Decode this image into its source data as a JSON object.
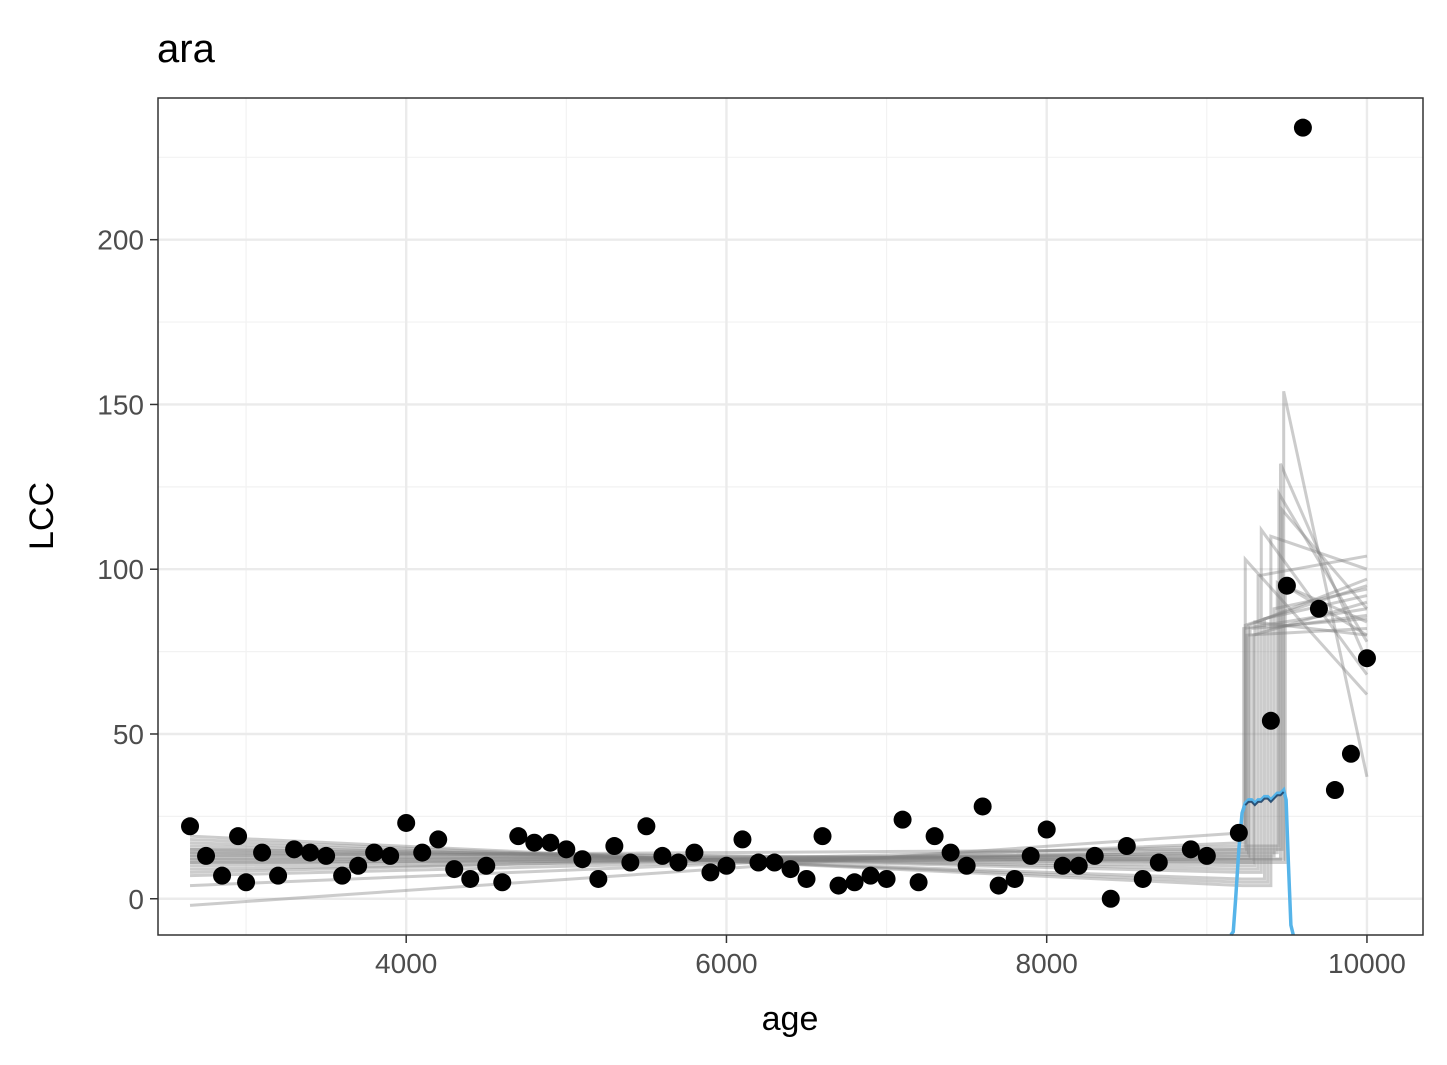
{
  "chart_data": {
    "type": "scatter",
    "title": "ara",
    "xlabel": "age",
    "ylabel": "LCC",
    "xlim": [
      2450,
      10350
    ],
    "ylim": [
      -11,
      243
    ],
    "xticks": [
      4000,
      6000,
      8000,
      10000
    ],
    "yticks": [
      0,
      50,
      100,
      150,
      200
    ],
    "x_minor_breaks": [
      3000,
      5000,
      7000,
      9000
    ],
    "y_minor_breaks": [
      25,
      75,
      125,
      175,
      225
    ],
    "grid": true,
    "theme": "bw",
    "points": {
      "x": [
        2650,
        2750,
        2850,
        2950,
        3000,
        3100,
        3200,
        3300,
        3400,
        3500,
        3600,
        3700,
        3800,
        3900,
        4000,
        4100,
        4200,
        4300,
        4400,
        4500,
        4600,
        4700,
        4800,
        4900,
        5000,
        5100,
        5200,
        5300,
        5400,
        5500,
        5600,
        5700,
        5800,
        5900,
        6000,
        6100,
        6200,
        6300,
        6400,
        6500,
        6600,
        6700,
        6800,
        6900,
        7000,
        7100,
        7200,
        7300,
        7400,
        7500,
        7600,
        7700,
        7800,
        7900,
        8000,
        8100,
        8200,
        8300,
        8400,
        8500,
        8600,
        8700,
        8900,
        9000,
        9200,
        9400,
        9500,
        9600,
        9700,
        9800,
        9900,
        10000
      ],
      "y": [
        22,
        13,
        7,
        19,
        5,
        14,
        7,
        15,
        14,
        13,
        7,
        10,
        14,
        13,
        23,
        14,
        18,
        9,
        6,
        10,
        5,
        19,
        17,
        17,
        15,
        12,
        6,
        16,
        11,
        22,
        13,
        11,
        14,
        8,
        10,
        18,
        11,
        11,
        9,
        6,
        19,
        4,
        5,
        7,
        6,
        24,
        5,
        19,
        14,
        10,
        28,
        4,
        6,
        13,
        21,
        10,
        10,
        13,
        0,
        16,
        6,
        11,
        15,
        13,
        20,
        54,
        95,
        234,
        88,
        33,
        44,
        73
      ],
      "color": "#000000"
    },
    "regime_fits": {
      "color": "#808080",
      "opacity": 0.4,
      "x_start": 2650,
      "x_end": 10000,
      "first_segment_end": 9220,
      "lines": [
        {
          "y0": -2,
          "y_pre": 20,
          "cp": 9230,
          "y_post_start": 82,
          "y_end": 88
        },
        {
          "y0": 4,
          "y_pre": 17,
          "cp": 9240,
          "y_post_start": 103,
          "y_end": 62
        },
        {
          "y0": 7,
          "y_pre": 15,
          "cp": 9240,
          "y_post_start": 83,
          "y_end": 95
        },
        {
          "y0": 9,
          "y_pre": 14,
          "cp": 9250,
          "y_post_start": 80,
          "y_end": 82
        },
        {
          "y0": 11,
          "y_pre": 13,
          "cp": 9260,
          "y_post_start": 83,
          "y_end": 97
        },
        {
          "y0": 12,
          "y_pre": 12,
          "cp": 9270,
          "y_post_start": 82,
          "y_end": 85
        },
        {
          "y0": 13,
          "y_pre": 11,
          "cp": 9290,
          "y_post_start": 80,
          "y_end": 90
        },
        {
          "y0": 14,
          "y_pre": 10,
          "cp": 9300,
          "y_post_start": 84,
          "y_end": 80
        },
        {
          "y0": 15,
          "y_pre": 9,
          "cp": 9320,
          "y_post_start": 98,
          "y_end": 104
        },
        {
          "y0": 16,
          "y_pre": 8,
          "cp": 9340,
          "y_post_start": 112,
          "y_end": 68
        },
        {
          "y0": 17,
          "y_pre": 6,
          "cp": 9360,
          "y_post_start": 85,
          "y_end": 92
        },
        {
          "y0": 18,
          "y_pre": 5,
          "cp": 9380,
          "y_post_start": 82,
          "y_end": 86
        },
        {
          "y0": 19,
          "y_pre": 4,
          "cp": 9400,
          "y_post_start": 110,
          "y_end": 100
        },
        {
          "y0": 12,
          "y_pre": 13,
          "cp": 9420,
          "y_post_start": 88,
          "y_end": 94
        },
        {
          "y0": 10,
          "y_pre": 14,
          "cp": 9440,
          "y_post_start": 96,
          "y_end": 84
        },
        {
          "y0": 8,
          "y_pre": 16,
          "cp": 9450,
          "y_post_start": 123,
          "y_end": 78
        },
        {
          "y0": 14,
          "y_pre": 12,
          "cp": 9460,
          "y_post_start": 132,
          "y_end": 72
        },
        {
          "y0": 13,
          "y_pre": 15,
          "cp": 9470,
          "y_post_start": 118,
          "y_end": 88
        },
        {
          "y0": 11,
          "y_pre": 12,
          "cp": 9480,
          "y_post_start": 154,
          "y_end": 37
        },
        {
          "y0": 15,
          "y_pre": 11,
          "cp": 9490,
          "y_post_start": 95,
          "y_end": 80
        }
      ]
    },
    "changepoint_density": {
      "color": "#56b4e9",
      "x": [
        9150,
        9165,
        9180,
        9200,
        9220,
        9240,
        9260,
        9280,
        9300,
        9320,
        9340,
        9360,
        9380,
        9400,
        9420,
        9440,
        9460,
        9480,
        9495,
        9510,
        9525,
        9540
      ],
      "y": [
        -11,
        -10,
        0,
        15,
        26,
        29,
        30,
        30,
        29,
        30,
        30,
        31,
        31,
        30,
        31,
        32,
        32,
        33,
        30,
        10,
        -8,
        -11
      ],
      "inner_line_color": "#1a3a5e"
    }
  }
}
